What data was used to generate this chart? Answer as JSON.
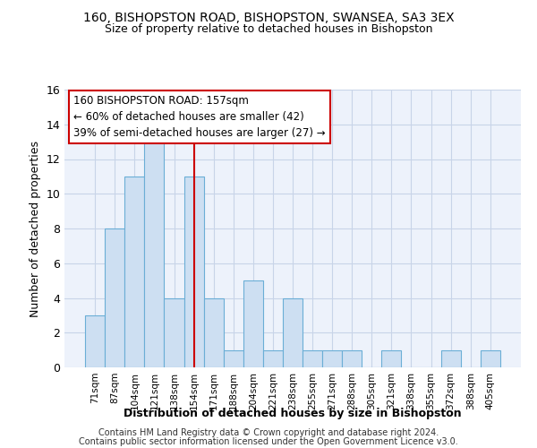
{
  "title1": "160, BISHOPSTON ROAD, BISHOPSTON, SWANSEA, SA3 3EX",
  "title2": "Size of property relative to detached houses in Bishopston",
  "xlabel": "Distribution of detached houses by size in Bishopston",
  "ylabel": "Number of detached properties",
  "categories": [
    "71sqm",
    "87sqm",
    "104sqm",
    "121sqm",
    "138sqm",
    "154sqm",
    "171sqm",
    "188sqm",
    "204sqm",
    "221sqm",
    "238sqm",
    "255sqm",
    "271sqm",
    "288sqm",
    "305sqm",
    "321sqm",
    "338sqm",
    "355sqm",
    "372sqm",
    "388sqm",
    "405sqm"
  ],
  "values": [
    3,
    8,
    11,
    13,
    4,
    11,
    4,
    1,
    5,
    1,
    4,
    1,
    1,
    1,
    0,
    1,
    0,
    0,
    1,
    0,
    1
  ],
  "bar_color": "#cddff2",
  "bar_edge_color": "#6baed6",
  "vline_x_index": 5,
  "vline_color": "#cc0000",
  "annotation_line1": "160 BISHOPSTON ROAD: 157sqm",
  "annotation_line2": "← 60% of detached houses are smaller (42)",
  "annotation_line3": "39% of semi-detached houses are larger (27) →",
  "annotation_box_color": "white",
  "annotation_box_edge_color": "#cc0000",
  "ylim": [
    0,
    16
  ],
  "yticks": [
    0,
    2,
    4,
    6,
    8,
    10,
    12,
    14,
    16
  ],
  "footer1": "Contains HM Land Registry data © Crown copyright and database right 2024.",
  "footer2": "Contains public sector information licensed under the Open Government Licence v3.0.",
  "bg_color": "#edf2fb",
  "grid_color": "#c8d4e8"
}
